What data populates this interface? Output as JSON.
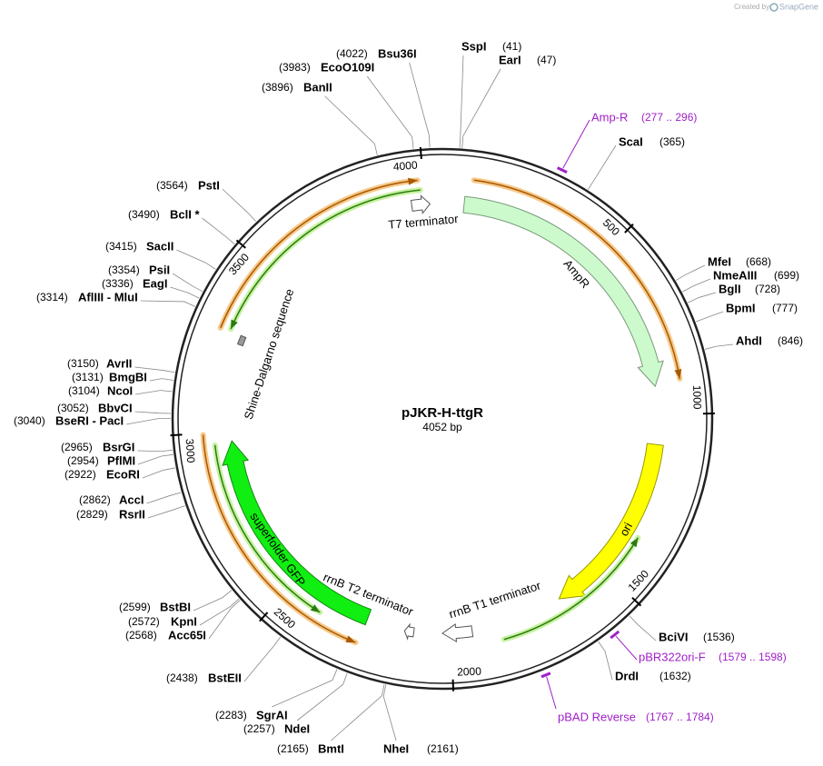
{
  "header": {
    "created_by": "Created by",
    "brand": "SnapGene"
  },
  "plasmid": {
    "name": "pJKR-H-ttgR",
    "size": "4052 bp",
    "ruler": [
      500,
      1000,
      1500,
      2000,
      2500,
      3000,
      3500,
      4000
    ]
  },
  "sites": [
    {
      "name": "SspI",
      "location": "(41)"
    },
    {
      "name": "EarI",
      "location": "(47)"
    },
    {
      "name": "ScaI",
      "location": "(365)"
    },
    {
      "name": "MfeI",
      "location": "(668)"
    },
    {
      "name": "NmeAIII",
      "location": "(699)"
    },
    {
      "name": "BglI",
      "location": "(728)"
    },
    {
      "name": "BpmI",
      "location": "(777)"
    },
    {
      "name": "AhdI",
      "location": "(846)"
    },
    {
      "name": "BciVI",
      "location": "(1536)"
    },
    {
      "name": "DrdI",
      "location": "(1632)"
    },
    {
      "name": "NheI",
      "location": "(2161)"
    },
    {
      "name": "Bsu36I",
      "location": "(4022)"
    },
    {
      "name": "EcoO109I",
      "location": "(3983)"
    },
    {
      "name": "BanII",
      "location": "(3896)"
    },
    {
      "name": "PstI",
      "location": "(3564)"
    },
    {
      "name": "BclI *",
      "location": "(3490)"
    },
    {
      "name": "SacII",
      "location": "(3415)"
    },
    {
      "name": "PsiI",
      "location": "(3354)"
    },
    {
      "name": "EagI",
      "location": "(3336)"
    },
    {
      "name": "AflIII  - MluI",
      "location": "(3314)"
    },
    {
      "name": "AvrII",
      "location": "(3150)"
    },
    {
      "name": "BmgBI",
      "location": "(3131)"
    },
    {
      "name": "NcoI",
      "location": "(3104)"
    },
    {
      "name": "BbvCI",
      "location": "(3052)"
    },
    {
      "name": "BseRI  - PacI",
      "location": "(3040)"
    },
    {
      "name": "BsrGI",
      "location": "(2965)"
    },
    {
      "name": "PflMI",
      "location": "(2954)"
    },
    {
      "name": "EcoRI",
      "location": "(2922)"
    },
    {
      "name": "AccI",
      "location": "(2862)"
    },
    {
      "name": "RsrII",
      "location": "(2829)"
    },
    {
      "name": "BstBI",
      "location": "(2599)"
    },
    {
      "name": "KpnI",
      "location": "(2572)"
    },
    {
      "name": "Acc65I",
      "location": "(2568)"
    },
    {
      "name": "BstEII",
      "location": "(2438)"
    },
    {
      "name": "SgrAI",
      "location": "(2283)"
    },
    {
      "name": "NdeI",
      "location": "(2257)"
    },
    {
      "name": "BmtI",
      "location": "(2165)"
    }
  ],
  "primers": [
    {
      "name": "Amp-R",
      "location": "(277 .. 296)"
    },
    {
      "name": "pBR322ori-F",
      "location": "(1579 .. 1598)"
    },
    {
      "name": "pBAD Reverse",
      "location": "(1767 .. 1784)"
    }
  ],
  "features": [
    {
      "label": "T7 terminator"
    },
    {
      "label": "AmpR"
    },
    {
      "label": "ori"
    },
    {
      "label": "rrnB T1 terminator"
    },
    {
      "label": "rrnB T2 terminator"
    },
    {
      "label": "superfolder GFP"
    },
    {
      "label": "Shine-Dalgarno sequence"
    }
  ]
}
